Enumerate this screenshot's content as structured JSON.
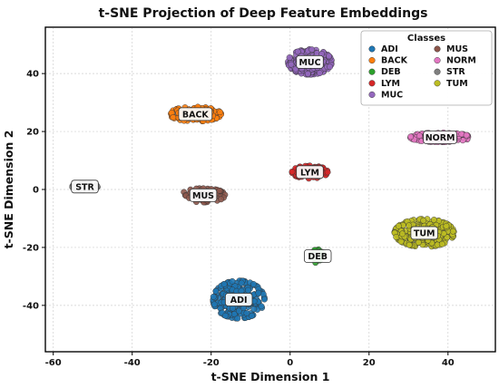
{
  "chart_data": {
    "type": "scatter",
    "title": "t-SNE Projection of Deep Feature Embeddings",
    "xlabel": "t-SNE Dimension 1",
    "ylabel": "t-SNE Dimension 2",
    "xlim": [
      -62,
      52
    ],
    "ylim": [
      -56,
      56
    ],
    "xticks": [
      -60,
      -40,
      -20,
      0,
      20,
      40
    ],
    "yticks": [
      -40,
      -20,
      0,
      20,
      40
    ],
    "grid": true,
    "legend": {
      "title": "Classes",
      "placement": "top-right",
      "columns": 2
    },
    "series": [
      {
        "name": "ADI",
        "color": "#1f77b4",
        "label": "ADI",
        "center": [
          -13,
          -38
        ],
        "spread": [
          6.5,
          6.5
        ],
        "count": 260
      },
      {
        "name": "BACK",
        "color": "#ff7f0e",
        "label": "BACK",
        "center": [
          -24,
          26
        ],
        "spread": [
          6.5,
          2.5
        ],
        "count": 160
      },
      {
        "name": "DEB",
        "color": "#2ca02c",
        "label": "DEB",
        "center": [
          7,
          -23
        ],
        "spread": [
          1.6,
          2.4
        ],
        "count": 28
      },
      {
        "name": "LYM",
        "color": "#d62728",
        "label": "LYM",
        "center": [
          5,
          6
        ],
        "spread": [
          4.5,
          2.2
        ],
        "count": 110
      },
      {
        "name": "MUC",
        "color": "#9467bd",
        "label": "MUC",
        "center": [
          5,
          44
        ],
        "spread": [
          5.5,
          4.3
        ],
        "count": 200
      },
      {
        "name": "MUS",
        "color": "#8c564b",
        "label": "MUS",
        "center": [
          -22,
          -2
        ],
        "spread": [
          5.5,
          2.4
        ],
        "count": 90
      },
      {
        "name": "NORM",
        "color": "#e377c2",
        "label": "NORM",
        "center": [
          38,
          18
        ],
        "spread": [
          7.5,
          1.6
        ],
        "count": 170
      },
      {
        "name": "STR",
        "color": "#7f7f7f",
        "label": "STR",
        "center": [
          -52,
          1
        ],
        "spread": [
          3.2,
          1.2
        ],
        "count": 45
      },
      {
        "name": "TUM",
        "color": "#bcbd22",
        "label": "TUM",
        "center": [
          34,
          -15
        ],
        "spread": [
          7.5,
          4.8
        ],
        "count": 280
      }
    ]
  }
}
